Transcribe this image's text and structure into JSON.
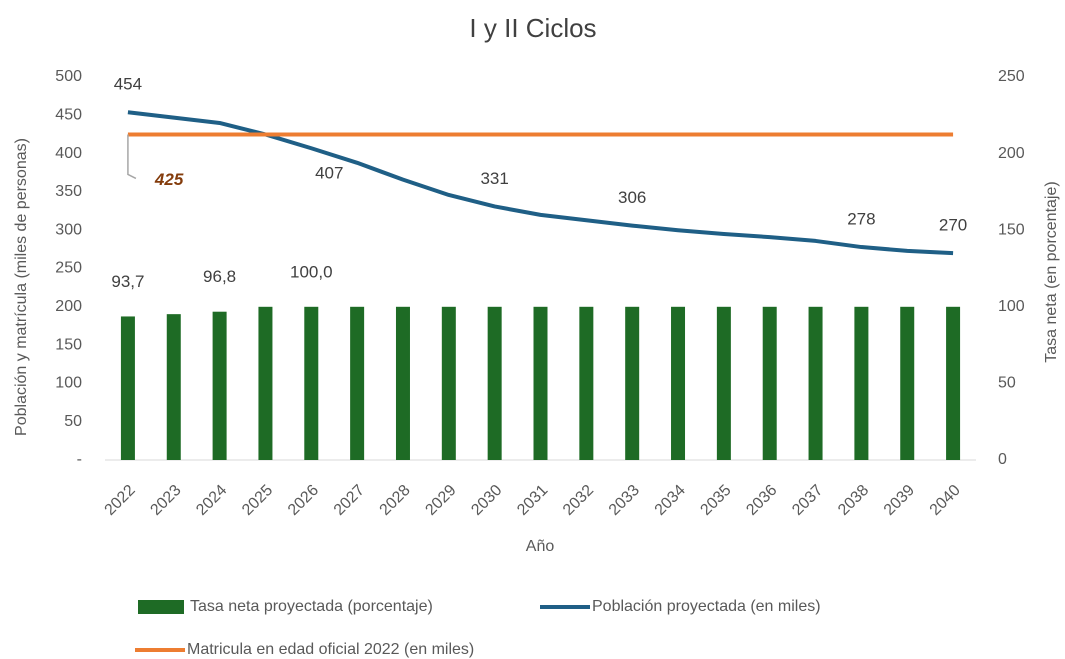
{
  "chart_data": {
    "type": "bar_line",
    "title": "I y II Ciclos",
    "x_label": "Año",
    "y_label": "Población y matrícula (miles de personas)",
    "y2_label": "Tasa  neta (en porcentaje)",
    "categories": [
      "2022",
      "2023",
      "2024",
      "2025",
      "2026",
      "2027",
      "2028",
      "2029",
      "2030",
      "2031",
      "2032",
      "2033",
      "2034",
      "2035",
      "2036",
      "2037",
      "2038",
      "2039",
      "2040"
    ],
    "ylim": [
      0,
      500
    ],
    "yticks": [
      {
        "value": 0,
        "label": "-"
      },
      50,
      100,
      150,
      200,
      250,
      300,
      350,
      400,
      450,
      500
    ],
    "y2lim": [
      0,
      250
    ],
    "y2ticks": [
      0,
      50,
      100,
      150,
      200,
      250
    ],
    "series": [
      {
        "name": "Tasa neta proyectada (porcentaje)",
        "type": "bar",
        "axis": "y2",
        "color": "#1e6b25",
        "values": [
          93.7,
          95.2,
          96.8,
          100,
          100,
          100,
          100,
          100,
          100,
          100,
          100,
          100,
          100,
          100,
          100,
          100,
          100,
          100,
          100
        ],
        "value_labels": [
          "93,7",
          null,
          "96,8",
          null,
          "100,0",
          null,
          null,
          null,
          null,
          null,
          null,
          null,
          null,
          null,
          null,
          null,
          null,
          null,
          null
        ]
      },
      {
        "name": "Población proyectada (en miles)",
        "type": "line",
        "color": "#1f5f86",
        "values": [
          454,
          447,
          440,
          425,
          407,
          388,
          366,
          346,
          331,
          320,
          313,
          306,
          300,
          295,
          291,
          286,
          278,
          273,
          270
        ],
        "value_labels": [
          "454",
          null,
          null,
          null,
          "407",
          null,
          null,
          null,
          "331",
          null,
          null,
          "306",
          null,
          null,
          null,
          null,
          "278",
          null,
          "270"
        ]
      },
      {
        "name": "Matricula en edad oficial 2022 (en miles)",
        "type": "line",
        "color": "#ed7d31",
        "label_color": "#843c0c",
        "values": [
          425,
          425,
          425,
          425,
          425,
          425,
          425,
          425,
          425,
          425,
          425,
          425,
          425,
          425,
          425,
          425,
          425,
          425,
          425
        ],
        "value_labels": [
          "425",
          null,
          null,
          null,
          null,
          null,
          null,
          null,
          null,
          null,
          null,
          null,
          null,
          null,
          null,
          null,
          null,
          null,
          null
        ]
      }
    ]
  }
}
